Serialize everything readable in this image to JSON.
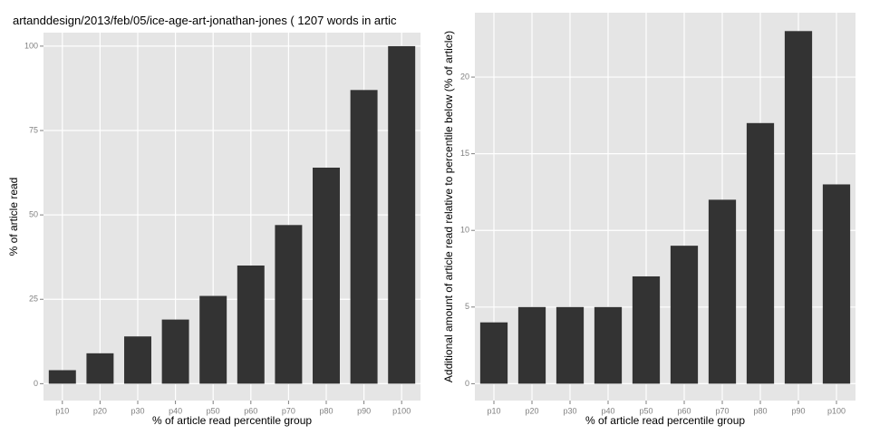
{
  "chart_data": [
    {
      "type": "bar",
      "title": "artanddesign/2013/feb/05/ice-age-art-jonathan-jones ( 1207 words in artic",
      "x_label": "% of article read percentile group",
      "y_label": "% of article read",
      "categories": [
        "p10",
        "p20",
        "p30",
        "p40",
        "p50",
        "p60",
        "p70",
        "p80",
        "p90",
        "p100"
      ],
      "values": [
        4,
        9,
        14,
        19,
        26,
        35,
        47,
        64,
        87,
        100
      ],
      "color": "#333333",
      "ylim": [
        -5,
        104
      ],
      "yticks": [
        0,
        25,
        50,
        75,
        100
      ],
      "grid": true
    },
    {
      "type": "bar",
      "x_label": "% of article read percentile group",
      "y_label": "Additional amount of article read relative to percentile below (% of article)",
      "categories": [
        "p10",
        "p20",
        "p30",
        "p40",
        "p50",
        "p60",
        "p70",
        "p80",
        "p90",
        "p100"
      ],
      "values": [
        4,
        5,
        5,
        5,
        7,
        9,
        12,
        17,
        23,
        13
      ],
      "color": "#333333",
      "ylim": [
        -1.1,
        24.2
      ],
      "yticks": [
        0,
        5,
        10,
        15,
        20
      ],
      "grid": true
    }
  ]
}
